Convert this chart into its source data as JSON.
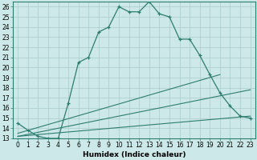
{
  "xlabel": "Humidex (Indice chaleur)",
  "x_values": [
    0,
    1,
    2,
    3,
    4,
    5,
    6,
    7,
    8,
    9,
    10,
    11,
    12,
    13,
    14,
    15,
    16,
    17,
    18,
    19,
    20,
    21,
    22,
    23
  ],
  "line_main": [
    14.5,
    13.8,
    13.2,
    13.0,
    13.0,
    16.5,
    20.5,
    21.0,
    23.5,
    24.0,
    26.0,
    25.5,
    25.5,
    26.5,
    25.3,
    25.0,
    22.8,
    22.8,
    21.2,
    19.3,
    17.5,
    16.2,
    15.2,
    15.0
  ],
  "line2_x": [
    0,
    20
  ],
  "line2_y": [
    13.5,
    19.3
  ],
  "line3_x": [
    0,
    23
  ],
  "line3_y": [
    13.2,
    15.2
  ],
  "line4_x": [
    0,
    23
  ],
  "line4_y": [
    13.2,
    17.8
  ],
  "color": "#2d7d6e",
  "bg_color": "#cce8e8",
  "grid_color": "#aacccc",
  "ylim": [
    13,
    26.5
  ],
  "xlim": [
    -0.5,
    23.5
  ],
  "yticks": [
    13,
    14,
    15,
    16,
    17,
    18,
    19,
    20,
    21,
    22,
    23,
    24,
    25,
    26
  ],
  "xticks": [
    0,
    1,
    2,
    3,
    4,
    5,
    6,
    7,
    8,
    9,
    10,
    11,
    12,
    13,
    14,
    15,
    16,
    17,
    18,
    19,
    20,
    21,
    22,
    23
  ],
  "tick_fontsize": 5.5,
  "xlabel_fontsize": 6.5
}
